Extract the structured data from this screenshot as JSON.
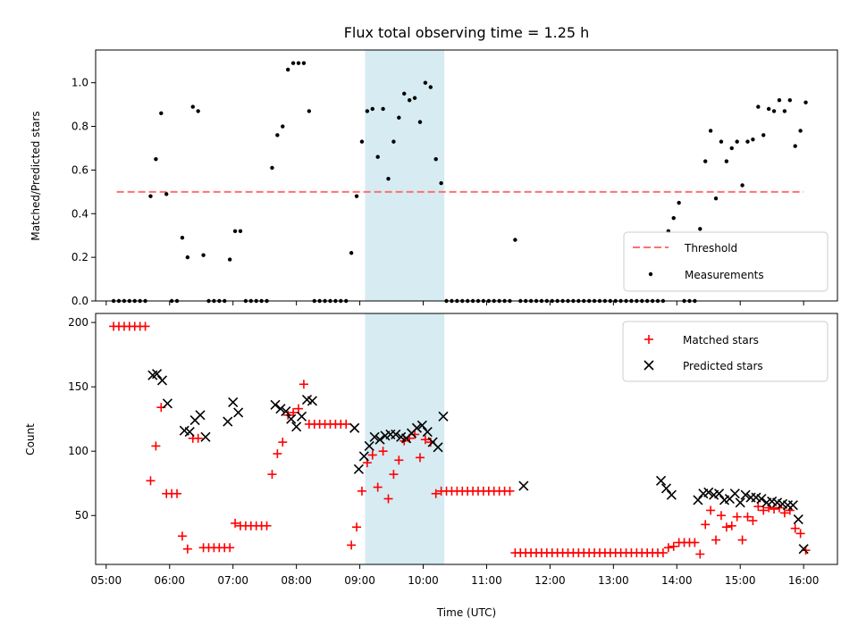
{
  "chart_data": [
    {
      "type": "scatter",
      "title": "Flux total observing time = 1.25 h",
      "xlabel": "",
      "ylabel": "Matched/Predicted stars",
      "ylim": [
        0,
        1.15
      ],
      "xlim": [
        "04:50",
        "16:32"
      ],
      "yticks": [
        0.0,
        0.2,
        0.4,
        0.6,
        0.8,
        1.0
      ],
      "ytick_labels": [
        "0.0",
        "0.2",
        "0.4",
        "0.6",
        "0.8",
        "1.0"
      ],
      "grid": false,
      "legend": "bottom-right",
      "highlight_span": [
        "09:05",
        "10:20"
      ],
      "threshold": {
        "name": "Threshold",
        "value": 0.5,
        "x": [
          "05:10",
          "16:00"
        ],
        "color": "#ff7070"
      },
      "series": [
        {
          "name": "Measurements",
          "color": "#000000",
          "x": [
            "05:07",
            "05:12",
            "05:17",
            "05:22",
            "05:27",
            "05:32",
            "05:37",
            "05:42",
            "05:47",
            "05:52",
            "05:57",
            "06:02",
            "06:07",
            "06:12",
            "06:17",
            "06:22",
            "06:27",
            "06:32",
            "06:37",
            "06:42",
            "06:47",
            "06:52",
            "06:57",
            "07:02",
            "07:07",
            "07:12",
            "07:17",
            "07:22",
            "07:27",
            "07:32",
            "07:37",
            "07:42",
            "07:47",
            "07:52",
            "07:57",
            "08:02",
            "08:07",
            "08:12",
            "08:17",
            "08:22",
            "08:27",
            "08:32",
            "08:37",
            "08:42",
            "08:47",
            "08:52",
            "08:57",
            "09:02",
            "09:07",
            "09:12",
            "09:17",
            "09:22",
            "09:27",
            "09:32",
            "09:37",
            "09:42",
            "09:47",
            "09:52",
            "09:57",
            "10:02",
            "10:07",
            "10:12",
            "10:17",
            "10:22",
            "10:27",
            "10:32",
            "10:37",
            "10:42",
            "10:47",
            "10:52",
            "10:57",
            "11:02",
            "11:07",
            "11:12",
            "11:17",
            "11:22",
            "11:27",
            "11:32",
            "11:37",
            "11:42",
            "11:47",
            "11:52",
            "11:57",
            "12:02",
            "12:07",
            "12:12",
            "12:17",
            "12:22",
            "12:27",
            "12:32",
            "12:37",
            "12:42",
            "12:47",
            "12:52",
            "12:57",
            "13:02",
            "13:07",
            "13:12",
            "13:17",
            "13:22",
            "13:27",
            "13:32",
            "13:37",
            "13:42",
            "13:47",
            "13:52",
            "13:57",
            "14:02",
            "14:07",
            "14:12",
            "14:17",
            "14:22",
            "14:27",
            "14:32",
            "14:37",
            "14:42",
            "14:47",
            "14:52",
            "14:57",
            "15:02",
            "15:07",
            "15:12",
            "15:17",
            "15:22",
            "15:27",
            "15:32",
            "15:37",
            "15:42",
            "15:47",
            "15:52",
            "15:57",
            "16:02"
          ],
          "y": [
            0,
            0,
            0,
            0,
            0,
            0,
            0,
            0.48,
            0.65,
            0.86,
            0.49,
            0,
            0,
            0.29,
            0.2,
            0.89,
            0.87,
            0.21,
            0,
            0,
            0,
            0,
            0.19,
            0.32,
            0.32,
            0,
            0,
            0,
            0,
            0,
            0.61,
            0.76,
            0.8,
            1.06,
            1.09,
            1.09,
            1.09,
            0.87,
            0,
            0,
            0,
            0,
            0,
            0,
            0,
            0.22,
            0.48,
            0.73,
            0.87,
            0.88,
            0.66,
            0.88,
            0.56,
            0.73,
            0.84,
            0.95,
            0.92,
            0.93,
            0.82,
            1.0,
            0.98,
            0.65,
            0.54,
            0,
            0,
            0,
            0,
            0,
            0,
            0,
            0,
            0,
            0,
            0,
            0,
            0,
            0.28,
            0,
            0,
            0,
            0,
            0,
            0,
            0,
            0,
            0,
            0,
            0,
            0,
            0,
            0,
            0,
            0,
            0,
            0,
            0,
            0,
            0,
            0,
            0,
            0,
            0,
            0,
            0,
            0,
            0.32,
            0.38,
            0.45,
            0,
            0,
            0,
            0.33,
            0.64,
            0.78,
            0.47,
            0.73,
            0.64,
            0.7,
            0.73,
            0.53,
            0.73,
            0.74,
            0.89,
            0.76,
            0.88,
            0.87,
            0.92,
            0.87,
            0.92,
            0.71,
            0.78,
            0.91
          ]
        }
      ]
    },
    {
      "type": "scatter",
      "title": "",
      "xlabel": "Time (UTC)",
      "ylabel": "Count",
      "ylim": [
        12,
        207
      ],
      "xlim": [
        "04:50",
        "16:32"
      ],
      "yticks": [
        50,
        100,
        150,
        200
      ],
      "ytick_labels": [
        "50",
        "100",
        "150",
        "200"
      ],
      "xticks": [
        "05:00",
        "06:00",
        "07:00",
        "08:00",
        "09:00",
        "10:00",
        "11:00",
        "12:00",
        "13:00",
        "14:00",
        "15:00",
        "16:00"
      ],
      "grid": false,
      "legend": "top-right",
      "highlight_span": [
        "09:05",
        "10:20"
      ],
      "series": [
        {
          "name": "Matched stars",
          "marker": "plus",
          "color": "#ff0000",
          "x": [
            "05:07",
            "05:12",
            "05:17",
            "05:22",
            "05:27",
            "05:32",
            "05:37",
            "05:42",
            "05:47",
            "05:52",
            "05:57",
            "06:02",
            "06:07",
            "06:12",
            "06:17",
            "06:22",
            "06:27",
            "06:32",
            "06:37",
            "06:42",
            "06:47",
            "06:52",
            "06:57",
            "07:02",
            "07:07",
            "07:12",
            "07:17",
            "07:22",
            "07:27",
            "07:32",
            "07:37",
            "07:42",
            "07:47",
            "07:52",
            "07:57",
            "08:02",
            "08:07",
            "08:12",
            "08:17",
            "08:22",
            "08:27",
            "08:32",
            "08:37",
            "08:42",
            "08:47",
            "08:52",
            "08:57",
            "09:02",
            "09:07",
            "09:12",
            "09:17",
            "09:22",
            "09:27",
            "09:32",
            "09:37",
            "09:42",
            "09:47",
            "09:52",
            "09:57",
            "10:02",
            "10:07",
            "10:12",
            "10:17",
            "10:22",
            "10:27",
            "10:32",
            "10:37",
            "10:42",
            "10:47",
            "10:52",
            "10:57",
            "11:02",
            "11:07",
            "11:12",
            "11:17",
            "11:22",
            "11:27",
            "11:32",
            "11:37",
            "11:42",
            "11:47",
            "11:52",
            "11:57",
            "12:02",
            "12:07",
            "12:12",
            "12:17",
            "12:22",
            "12:27",
            "12:32",
            "12:37",
            "12:42",
            "12:47",
            "12:52",
            "12:57",
            "13:02",
            "13:07",
            "13:12",
            "13:17",
            "13:22",
            "13:27",
            "13:32",
            "13:37",
            "13:42",
            "13:47",
            "13:52",
            "13:57",
            "14:02",
            "14:07",
            "14:12",
            "14:17",
            "14:22",
            "14:27",
            "14:32",
            "14:37",
            "14:42",
            "14:47",
            "14:52",
            "14:57",
            "15:02",
            "15:07",
            "15:12",
            "15:17",
            "15:22",
            "15:27",
            "15:32",
            "15:37",
            "15:42",
            "15:47",
            "15:52",
            "15:57",
            "16:02"
          ],
          "y": [
            197,
            197,
            197,
            197,
            197,
            197,
            197,
            77,
            104,
            134,
            67,
            67,
            67,
            34,
            24,
            110,
            110,
            25,
            25,
            25,
            25,
            25,
            25,
            44,
            42,
            42,
            42,
            42,
            42,
            42,
            82,
            98,
            107,
            128,
            130,
            133,
            152,
            121,
            121,
            121,
            121,
            121,
            121,
            121,
            121,
            27,
            41,
            69,
            91,
            97,
            72,
            100,
            63,
            82,
            93,
            108,
            110,
            113,
            95,
            109,
            107,
            67,
            69,
            69,
            69,
            69,
            69,
            69,
            69,
            69,
            69,
            69,
            69,
            69,
            69,
            69,
            21,
            21,
            21,
            21,
            21,
            21,
            21,
            21,
            21,
            21,
            21,
            21,
            21,
            21,
            21,
            21,
            21,
            21,
            21,
            21,
            21,
            21,
            21,
            21,
            21,
            21,
            21,
            21,
            21,
            25,
            26,
            29,
            29,
            29,
            29,
            20,
            43,
            54,
            31,
            50,
            41,
            42,
            49,
            31,
            49,
            46,
            57,
            54,
            56,
            55,
            56,
            52,
            54,
            40,
            36,
            23
          ]
        },
        {
          "name": "Predicted stars",
          "marker": "x",
          "color": "#000000",
          "x": [
            "05:44",
            "05:48",
            "05:53",
            "05:58",
            "06:14",
            "06:19",
            "06:24",
            "06:29",
            "06:34",
            "06:55",
            "07:00",
            "07:05",
            "07:40",
            "07:45",
            "07:50",
            "07:55",
            "08:00",
            "08:05",
            "08:10",
            "08:15",
            "08:55",
            "08:59",
            "09:04",
            "09:09",
            "09:14",
            "09:19",
            "09:24",
            "09:29",
            "09:34",
            "09:39",
            "09:44",
            "09:49",
            "09:54",
            "09:59",
            "10:04",
            "10:09",
            "10:14",
            "10:19",
            "11:35",
            "13:45",
            "13:50",
            "13:55",
            "14:20",
            "14:25",
            "14:30",
            "14:35",
            "14:40",
            "14:45",
            "14:50",
            "14:55",
            "15:00",
            "15:05",
            "15:10",
            "15:15",
            "15:20",
            "15:25",
            "15:30",
            "15:35",
            "15:40",
            "15:45",
            "15:50",
            "15:55",
            "16:00"
          ],
          "y": [
            159,
            160,
            155,
            137,
            116,
            115,
            124,
            128,
            111,
            123,
            138,
            130,
            136,
            133,
            131,
            125,
            119,
            127,
            140,
            139,
            118,
            86,
            96,
            104,
            111,
            109,
            112,
            113,
            113,
            111,
            110,
            114,
            118,
            120,
            115,
            107,
            103,
            127,
            73,
            77,
            71,
            66,
            62,
            67,
            68,
            66,
            67,
            62,
            63,
            67,
            60,
            66,
            64,
            64,
            63,
            60,
            61,
            60,
            59,
            58,
            58,
            47,
            24
          ]
        }
      ]
    }
  ]
}
